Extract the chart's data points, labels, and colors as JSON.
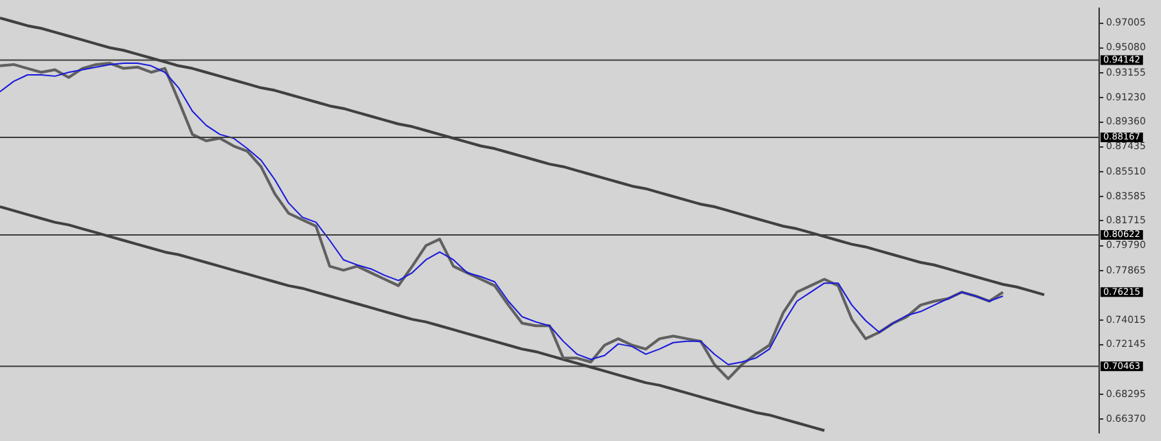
{
  "chart_data": {
    "type": "line",
    "categories": [
      null,
      null,
      null,
      null,
      null,
      null,
      null,
      null,
      null,
      null,
      null,
      null,
      null,
      null,
      null,
      null,
      null,
      null,
      null,
      null,
      null,
      null,
      null,
      null,
      null,
      null,
      null,
      null,
      null,
      null,
      null,
      null,
      null,
      null,
      null,
      null,
      null,
      null,
      null,
      null,
      null,
      null,
      null,
      null,
      null,
      null,
      null,
      null,
      null,
      null,
      null,
      null,
      null,
      null,
      null,
      null,
      null,
      null,
      null,
      null,
      null,
      null,
      null,
      null,
      null,
      null,
      null,
      null,
      null,
      null,
      null,
      null,
      null,
      null,
      null,
      null,
      null
    ],
    "series": [
      {
        "type": "line",
        "color": "#404040",
        "values": [
          0.974,
          0.971,
          0.968,
          0.966,
          0.963,
          0.96,
          0.957,
          0.954,
          0.951,
          0.949,
          0.946,
          0.943,
          0.94,
          0.937,
          0.935,
          0.932,
          0.929,
          0.926,
          0.923,
          0.92,
          0.918,
          0.915,
          0.912,
          0.909,
          0.906,
          0.904,
          0.901,
          0.898,
          0.895,
          0.892,
          0.89,
          0.887,
          0.884,
          0.881,
          0.878,
          0.875,
          0.873,
          0.87,
          0.867,
          0.864,
          0.861,
          0.859,
          0.856,
          0.853,
          0.85,
          0.847,
          0.844,
          0.842,
          0.839,
          0.836,
          0.833,
          0.83,
          0.828,
          0.825,
          0.822,
          0.819,
          0.816,
          0.813,
          0.811,
          0.808,
          0.805,
          0.802,
          0.799,
          0.797,
          0.794,
          0.791,
          0.788,
          0.785,
          0.783,
          0.78,
          0.777,
          0.774,
          0.771,
          0.768,
          0.766,
          0.763,
          0.76
        ]
      },
      {
        "type": "line",
        "color": "#404040",
        "values": [
          0.828,
          0.825,
          0.822,
          0.819,
          0.816,
          0.814,
          0.811,
          0.808,
          0.805,
          0.802,
          0.799,
          0.796,
          0.793,
          0.791,
          0.788,
          0.785,
          0.782,
          0.779,
          0.776,
          0.773,
          0.77,
          0.767,
          0.765,
          0.762,
          0.759,
          0.756,
          0.753,
          0.75,
          0.747,
          0.744,
          0.741,
          0.739,
          0.736,
          0.733,
          0.73,
          0.727,
          0.724,
          0.721,
          0.718,
          0.716,
          0.713,
          0.71,
          0.707,
          0.704,
          0.701,
          0.698,
          0.695,
          0.692,
          0.69,
          0.687,
          0.684,
          0.681,
          0.678,
          0.675,
          0.672,
          0.669,
          0.667,
          0.664,
          0.661,
          0.658,
          0.655,
          null,
          null,
          null,
          null,
          null,
          null,
          null,
          null,
          null,
          null,
          null,
          null,
          null,
          null,
          null,
          null
        ]
      },
      {
        "type": "line",
        "color": "#606060",
        "values": [
          0.937,
          0.938,
          0.935,
          0.932,
          0.934,
          0.928,
          0.935,
          0.938,
          0.939,
          0.935,
          0.936,
          0.932,
          0.935,
          0.91,
          0.884,
          0.879,
          0.881,
          0.875,
          0.871,
          0.859,
          0.838,
          0.823,
          0.818,
          0.813,
          0.782,
          0.779,
          0.782,
          0.777,
          0.772,
          0.767,
          0.782,
          0.798,
          0.803,
          0.782,
          0.777,
          0.772,
          0.767,
          0.752,
          0.738,
          0.736,
          0.736,
          0.711,
          0.711,
          0.708,
          0.721,
          0.726,
          0.721,
          0.718,
          0.726,
          0.728,
          0.726,
          0.724,
          0.706,
          0.695,
          0.706,
          0.714,
          0.721,
          0.746,
          0.762,
          0.767,
          0.772,
          0.767,
          0.741,
          0.726,
          0.731,
          0.738,
          0.743,
          0.752,
          0.755,
          0.757,
          0.762,
          0.759,
          0.755,
          0.762,
          null,
          null,
          null
        ]
      },
      {
        "type": "line",
        "color": "#1a1adb",
        "values": [
          0.917,
          0.925,
          0.93,
          0.93,
          0.929,
          0.932,
          0.934,
          0.936,
          0.938,
          0.939,
          0.939,
          0.937,
          0.932,
          0.92,
          0.902,
          0.891,
          0.884,
          0.881,
          0.873,
          0.864,
          0.849,
          0.831,
          0.82,
          0.816,
          0.802,
          0.787,
          0.783,
          0.78,
          0.775,
          0.771,
          0.777,
          0.787,
          0.793,
          0.787,
          0.777,
          0.774,
          0.77,
          0.755,
          0.743,
          0.739,
          0.736,
          0.724,
          0.714,
          0.71,
          0.713,
          0.722,
          0.72,
          0.714,
          0.718,
          0.723,
          0.724,
          0.724,
          0.714,
          0.706,
          0.708,
          0.711,
          0.718,
          0.738,
          0.755,
          0.762,
          0.769,
          0.769,
          0.752,
          0.74,
          0.731,
          0.738,
          0.744,
          0.747,
          0.752,
          0.757,
          0.762,
          0.759,
          0.755,
          0.759,
          null,
          null,
          null
        ]
      }
    ],
    "ylim": [
      0.6535,
      0.9813
    ],
    "yticks": [
      {
        "value": 0.97005,
        "label": "0.97005"
      },
      {
        "value": 0.9508,
        "label": "0.95080"
      },
      {
        "value": 0.93155,
        "label": "0.93155"
      },
      {
        "value": 0.9123,
        "label": "0.91230"
      },
      {
        "value": 0.8936,
        "label": "0.89360"
      },
      {
        "value": 0.87435,
        "label": "0.87435"
      },
      {
        "value": 0.8551,
        "label": "0.85510"
      },
      {
        "value": 0.83585,
        "label": "0.83585"
      },
      {
        "value": 0.81715,
        "label": "0.81715"
      },
      {
        "value": 0.7979,
        "label": "0.79790"
      },
      {
        "value": 0.77865,
        "label": "0.77865"
      },
      {
        "value": 0.74015,
        "label": "0.74015"
      },
      {
        "value": 0.72145,
        "label": "0.72145"
      },
      {
        "value": 0.68295,
        "label": "0.68295"
      },
      {
        "value": 0.6637,
        "label": "0.66370"
      }
    ],
    "ref_lines": [
      {
        "axis": "y",
        "value": 0.94142,
        "label": "0.94142",
        "color": "#404040"
      },
      {
        "axis": "y",
        "value": 0.88167,
        "label": "0.88167",
        "color": "#404040"
      },
      {
        "axis": "y",
        "value": 0.80622,
        "label": "0.80622",
        "color": "#404040"
      },
      {
        "axis": "y",
        "value": 0.70463,
        "label": "0.70463",
        "color": "#404040"
      }
    ],
    "annotations": [
      "0.76215"
    ],
    "tick_labels": "y",
    "grid": false,
    "legend": false
  }
}
